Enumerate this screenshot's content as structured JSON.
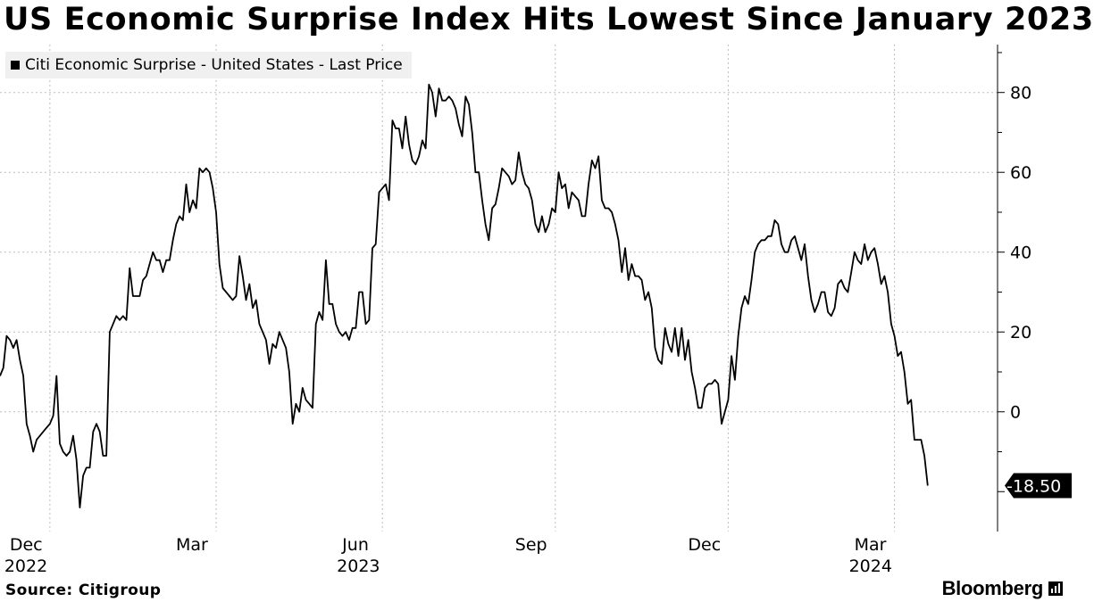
{
  "header": {
    "title": "US Economic Surprise Index Hits Lowest Since January 2023"
  },
  "legend": {
    "label": "Citi Economic Surprise - United States - Last Price"
  },
  "footer": {
    "source": "Source: Citigroup",
    "brand": "Bloomberg"
  },
  "colors": {
    "line": "#000000",
    "grid": "#bdbdbd",
    "legend_bg": "#f0f0f0"
  },
  "chart_data": {
    "type": "line",
    "title": "US Economic Surprise Index Hits Lowest Since January 2023",
    "series": [
      {
        "name": "Citi Economic Surprise - United States - Last Price",
        "points": [
          [
            0,
            9
          ],
          [
            1,
            11
          ],
          [
            2,
            19
          ],
          [
            3,
            18
          ],
          [
            4,
            16
          ],
          [
            5,
            18
          ],
          [
            6,
            13
          ],
          [
            7,
            9
          ],
          [
            8,
            -3
          ],
          [
            9,
            -6
          ],
          [
            10,
            -10
          ],
          [
            11,
            -7
          ],
          [
            12,
            -6
          ],
          [
            13,
            -5
          ],
          [
            14,
            -4
          ],
          [
            15,
            -3
          ],
          [
            16,
            -1
          ],
          [
            17,
            9
          ],
          [
            18,
            -8
          ],
          [
            19,
            -10
          ],
          [
            20,
            -11
          ],
          [
            21,
            -10
          ],
          [
            22,
            -6
          ],
          [
            23,
            -12
          ],
          [
            24,
            -24
          ],
          [
            25,
            -16
          ],
          [
            26,
            -14
          ],
          [
            27,
            -14
          ],
          [
            28,
            -5
          ],
          [
            29,
            -3
          ],
          [
            30,
            -5
          ],
          [
            31,
            -11
          ],
          [
            32,
            -11
          ],
          [
            33,
            20
          ],
          [
            34,
            22
          ],
          [
            35,
            24
          ],
          [
            36,
            23
          ],
          [
            37,
            24
          ],
          [
            38,
            23
          ],
          [
            39,
            36
          ],
          [
            40,
            29
          ],
          [
            41,
            29
          ],
          [
            42,
            29
          ],
          [
            43,
            33
          ],
          [
            44,
            34
          ],
          [
            45,
            37
          ],
          [
            46,
            40
          ],
          [
            47,
            38
          ],
          [
            48,
            38
          ],
          [
            49,
            35
          ],
          [
            50,
            38
          ],
          [
            51,
            38
          ],
          [
            52,
            43
          ],
          [
            53,
            47
          ],
          [
            54,
            49
          ],
          [
            55,
            48
          ],
          [
            56,
            57
          ],
          [
            57,
            50
          ],
          [
            58,
            53
          ],
          [
            59,
            51
          ],
          [
            60,
            61
          ],
          [
            61,
            60
          ],
          [
            62,
            61
          ],
          [
            63,
            60
          ],
          [
            64,
            56
          ],
          [
            65,
            50
          ],
          [
            66,
            37
          ],
          [
            67,
            31
          ],
          [
            68,
            30
          ],
          [
            69,
            29
          ],
          [
            70,
            28
          ],
          [
            71,
            29
          ],
          [
            72,
            39
          ],
          [
            73,
            34
          ],
          [
            74,
            28
          ],
          [
            75,
            32
          ],
          [
            76,
            26
          ],
          [
            77,
            28
          ],
          [
            78,
            22
          ],
          [
            79,
            20
          ],
          [
            80,
            18
          ],
          [
            81,
            12
          ],
          [
            82,
            17
          ],
          [
            83,
            16
          ],
          [
            84,
            20
          ],
          [
            85,
            18
          ],
          [
            86,
            16
          ],
          [
            87,
            10
          ],
          [
            88,
            -3
          ],
          [
            89,
            2
          ],
          [
            90,
            0
          ],
          [
            91,
            6
          ],
          [
            92,
            3
          ],
          [
            93,
            2
          ],
          [
            94,
            1
          ],
          [
            95,
            22
          ],
          [
            96,
            25
          ],
          [
            97,
            23
          ],
          [
            98,
            38
          ],
          [
            99,
            27
          ],
          [
            100,
            27
          ],
          [
            101,
            22
          ],
          [
            102,
            20
          ],
          [
            103,
            19
          ],
          [
            104,
            20
          ],
          [
            105,
            18
          ],
          [
            106,
            21
          ],
          [
            107,
            21
          ],
          [
            108,
            30
          ],
          [
            109,
            30
          ],
          [
            110,
            22
          ],
          [
            111,
            23
          ],
          [
            112,
            41
          ],
          [
            113,
            42
          ],
          [
            114,
            55
          ],
          [
            115,
            56
          ],
          [
            116,
            57
          ],
          [
            117,
            53
          ],
          [
            118,
            73
          ],
          [
            119,
            71
          ],
          [
            120,
            71
          ],
          [
            121,
            66
          ],
          [
            122,
            74
          ],
          [
            123,
            67
          ],
          [
            124,
            63
          ],
          [
            125,
            62
          ],
          [
            126,
            64
          ],
          [
            127,
            68
          ],
          [
            128,
            66
          ],
          [
            129,
            82
          ],
          [
            130,
            80
          ],
          [
            131,
            74
          ],
          [
            132,
            81
          ],
          [
            133,
            78
          ],
          [
            134,
            78
          ],
          [
            135,
            79
          ],
          [
            136,
            78
          ],
          [
            137,
            76
          ],
          [
            138,
            72
          ],
          [
            139,
            69
          ],
          [
            140,
            79
          ],
          [
            141,
            77
          ],
          [
            142,
            70
          ],
          [
            143,
            60
          ],
          [
            144,
            60
          ],
          [
            145,
            53
          ],
          [
            146,
            47
          ],
          [
            147,
            43
          ],
          [
            148,
            51
          ],
          [
            149,
            52
          ],
          [
            150,
            56
          ],
          [
            151,
            61
          ],
          [
            152,
            60
          ],
          [
            153,
            59
          ],
          [
            154,
            57
          ],
          [
            155,
            58
          ],
          [
            156,
            65
          ],
          [
            157,
            60
          ],
          [
            158,
            57
          ],
          [
            159,
            56
          ],
          [
            160,
            53
          ],
          [
            161,
            47
          ],
          [
            162,
            45
          ],
          [
            163,
            49
          ],
          [
            164,
            45
          ],
          [
            165,
            47
          ],
          [
            166,
            51
          ],
          [
            167,
            50
          ],
          [
            168,
            60
          ],
          [
            169,
            56
          ],
          [
            170,
            57
          ],
          [
            171,
            51
          ],
          [
            172,
            55
          ],
          [
            173,
            54
          ],
          [
            174,
            53
          ],
          [
            175,
            49
          ],
          [
            176,
            49
          ],
          [
            177,
            57
          ],
          [
            178,
            63
          ],
          [
            179,
            61
          ],
          [
            180,
            64
          ],
          [
            181,
            53
          ],
          [
            182,
            51
          ],
          [
            183,
            51
          ],
          [
            184,
            50
          ],
          [
            185,
            47
          ],
          [
            186,
            43
          ],
          [
            187,
            35
          ],
          [
            188,
            41
          ],
          [
            189,
            33
          ],
          [
            190,
            37
          ],
          [
            191,
            34
          ],
          [
            192,
            34
          ],
          [
            193,
            33
          ],
          [
            194,
            28
          ],
          [
            195,
            30
          ],
          [
            196,
            26
          ],
          [
            197,
            16
          ],
          [
            198,
            13
          ],
          [
            199,
            12
          ],
          [
            200,
            21
          ],
          [
            201,
            17
          ],
          [
            202,
            15
          ],
          [
            203,
            21
          ],
          [
            204,
            14
          ],
          [
            205,
            21
          ],
          [
            206,
            13
          ],
          [
            207,
            18
          ],
          [
            208,
            10
          ],
          [
            209,
            6
          ],
          [
            210,
            1
          ],
          [
            211,
            1
          ],
          [
            212,
            6
          ],
          [
            213,
            7
          ],
          [
            214,
            7
          ],
          [
            215,
            8
          ],
          [
            216,
            7
          ],
          [
            217,
            -3
          ],
          [
            218,
            0
          ],
          [
            219,
            3
          ],
          [
            220,
            14
          ],
          [
            221,
            8
          ],
          [
            222,
            19
          ],
          [
            223,
            26
          ],
          [
            224,
            29
          ],
          [
            225,
            27
          ],
          [
            226,
            33
          ],
          [
            227,
            40
          ],
          [
            228,
            42
          ],
          [
            229,
            43
          ],
          [
            230,
            43
          ],
          [
            231,
            44
          ],
          [
            232,
            44
          ],
          [
            233,
            48
          ],
          [
            234,
            47
          ],
          [
            235,
            42
          ],
          [
            236,
            40
          ],
          [
            237,
            40
          ],
          [
            238,
            43
          ],
          [
            239,
            44
          ],
          [
            240,
            41
          ],
          [
            241,
            38
          ],
          [
            242,
            42
          ],
          [
            243,
            34
          ],
          [
            244,
            28
          ],
          [
            245,
            25
          ],
          [
            246,
            27
          ],
          [
            247,
            30
          ],
          [
            248,
            30
          ],
          [
            249,
            25
          ],
          [
            250,
            24
          ],
          [
            251,
            26
          ],
          [
            252,
            32
          ],
          [
            253,
            33
          ],
          [
            254,
            31
          ],
          [
            255,
            30
          ],
          [
            256,
            35
          ],
          [
            257,
            40
          ],
          [
            258,
            38
          ],
          [
            259,
            37
          ],
          [
            260,
            42
          ],
          [
            261,
            38
          ],
          [
            262,
            40
          ],
          [
            263,
            41
          ],
          [
            264,
            37
          ],
          [
            265,
            32
          ],
          [
            266,
            34
          ],
          [
            267,
            30
          ],
          [
            268,
            22
          ],
          [
            269,
            19
          ],
          [
            270,
            14
          ],
          [
            271,
            15
          ],
          [
            272,
            10
          ],
          [
            273,
            2
          ],
          [
            274,
            3
          ],
          [
            275,
            -7
          ],
          [
            276,
            -7
          ],
          [
            277,
            -7
          ],
          [
            278,
            -11
          ],
          [
            279,
            -18.5
          ]
        ]
      }
    ],
    "xlim": [
      0,
      300
    ],
    "ylim": [
      -30,
      92
    ],
    "yticks": [
      0,
      20,
      40,
      60,
      80
    ],
    "xticks": [
      {
        "month": "Dec",
        "year": "2022",
        "x": 15
      },
      {
        "month": "Mar",
        "year": "",
        "x": 65
      },
      {
        "month": "Jun",
        "year": "2023",
        "x": 115
      },
      {
        "month": "Sep",
        "year": "",
        "x": 167
      },
      {
        "month": "Dec",
        "year": "",
        "x": 219
      },
      {
        "month": "Mar",
        "year": "2024",
        "x": 269
      }
    ],
    "last_value_label": "-18.50",
    "xlabel": "",
    "ylabel": ""
  }
}
